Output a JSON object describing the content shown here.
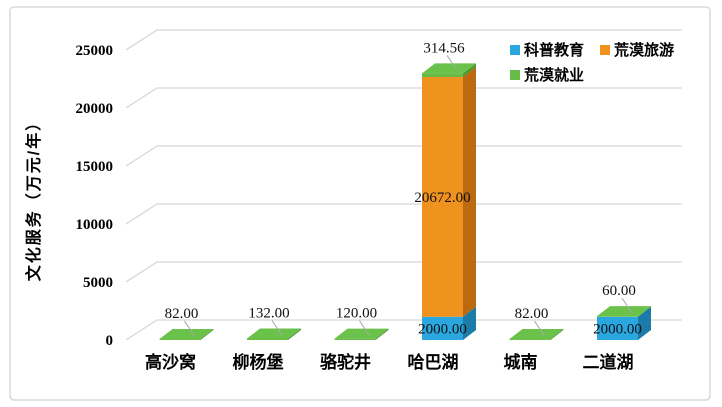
{
  "frame": {
    "background": "#ffffff",
    "border_color": "#d9d9d9"
  },
  "chart_data": {
    "type": "bar",
    "variant": "3d-stacked-column",
    "title": "",
    "ylabel": "文化服务（万元/年）",
    "xlabel": "",
    "ylim": [
      0,
      25000
    ],
    "yticks": [
      "0",
      "5000",
      "10000",
      "15000",
      "20000",
      "25000"
    ],
    "grid": true,
    "legend_position": "top-right",
    "categories": [
      "高沙窝",
      "柳杨堡",
      "骆驼井",
      "哈巴湖",
      "城南",
      "二道湖"
    ],
    "series": [
      {
        "name": "科普教育",
        "color": "#2ba7df",
        "side_color": "#1b7ca9",
        "values": [
          0,
          0,
          0,
          2000,
          0,
          2000
        ]
      },
      {
        "name": "荒漠旅游",
        "color": "#f0921e",
        "side_color": "#bc6a10",
        "values": [
          0,
          0,
          0,
          20672,
          0,
          0
        ]
      },
      {
        "name": "荒漠就业",
        "color": "#66bc46",
        "side_color": "#4e9733",
        "top_color": "#6bc24b",
        "values": [
          82,
          132,
          120,
          314.56,
          82,
          60
        ]
      }
    ],
    "data_labels": [
      {
        "top": "82.00",
        "inner": []
      },
      {
        "top": "132.00",
        "inner": []
      },
      {
        "top": "120.00",
        "inner": []
      },
      {
        "top": "314.56",
        "inner": [
          {
            "series": 0,
            "text": "2000.00"
          },
          {
            "series": 1,
            "text": "20672.00"
          }
        ]
      },
      {
        "top": "82.00",
        "inner": []
      },
      {
        "top": "60.00",
        "inner": [
          {
            "series": 0,
            "text": "2000.00"
          }
        ]
      }
    ],
    "colors": {
      "grid": "#d6d6d6",
      "leader": "#a6a6a6",
      "label_text": "#111111"
    }
  }
}
